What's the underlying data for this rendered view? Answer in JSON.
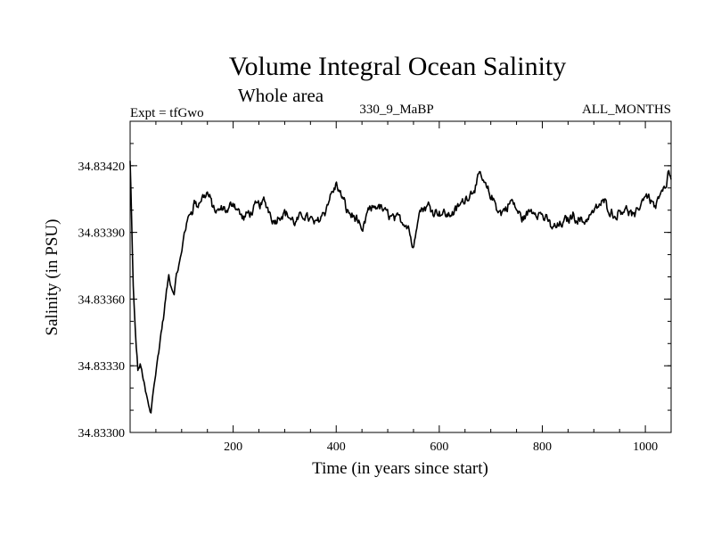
{
  "chart_data": {
    "type": "line",
    "title": "Volume Integral Ocean Salinity",
    "subtitle": "Whole area",
    "annotations": {
      "left": "Expt = tfGwo",
      "center": "330_9_MaBP",
      "right": "ALL_MONTHS"
    },
    "xlabel": "Time (in years since start)",
    "ylabel": "Salinity (in PSU)",
    "xlim": [
      0,
      1050
    ],
    "ylim": [
      34.833,
      34.8344
    ],
    "x_ticks": [
      200,
      400,
      600,
      800,
      1000
    ],
    "x_tick_labels": [
      "200",
      "400",
      "600",
      "800",
      "1000"
    ],
    "y_ticks": [
      34.833,
      34.8336,
      34.8339,
      34.8342
    ],
    "y_tick_labels": [
      "34.83300",
      "34.83360",
      "34.83390",
      "34.83420"
    ],
    "y_tick_labels_extra": {
      "value": 34.8333,
      "label": "34.83330"
    },
    "grid": false,
    "series": [
      {
        "name": "salinity",
        "color": "#000000",
        "x": [
          0,
          3,
          6,
          10,
          15,
          20,
          25,
          30,
          35,
          40,
          45,
          50,
          55,
          60,
          65,
          70,
          75,
          80,
          85,
          90,
          95,
          100,
          105,
          110,
          115,
          120,
          125,
          130,
          140,
          150,
          160,
          170,
          180,
          190,
          200,
          220,
          240,
          260,
          280,
          300,
          320,
          340,
          360,
          380,
          400,
          420,
          440,
          450,
          460,
          480,
          500,
          520,
          540,
          550,
          555,
          560,
          580,
          600,
          620,
          640,
          660,
          680,
          700,
          720,
          740,
          760,
          780,
          800,
          820,
          840,
          860,
          880,
          900,
          920,
          940,
          960,
          980,
          1000,
          1020,
          1030,
          1040,
          1045,
          1050
        ],
        "values": [
          34.83422,
          34.83395,
          34.83365,
          34.83345,
          34.83328,
          34.8333,
          34.83325,
          34.83318,
          34.83313,
          34.83308,
          34.8332,
          34.83328,
          34.83336,
          34.83345,
          34.83352,
          34.83362,
          34.8337,
          34.83365,
          34.83362,
          34.8337,
          34.83375,
          34.8338,
          34.8339,
          34.83394,
          34.83398,
          34.834,
          34.83405,
          34.83402,
          34.83405,
          34.83408,
          34.83402,
          34.83398,
          34.834,
          34.83398,
          34.83404,
          34.83396,
          34.834,
          34.83404,
          34.83396,
          34.834,
          34.83394,
          34.83398,
          34.83394,
          34.83402,
          34.83412,
          34.834,
          34.83396,
          34.83388,
          34.83398,
          34.83402,
          34.83398,
          34.83396,
          34.83394,
          34.83382,
          34.83392,
          34.834,
          34.83402,
          34.834,
          34.83398,
          34.83402,
          34.83408,
          34.83415,
          34.83406,
          34.83398,
          34.83404,
          34.83396,
          34.834,
          34.83398,
          34.83392,
          34.83394,
          34.83398,
          34.83395,
          34.834,
          34.83404,
          34.83398,
          34.83402,
          34.83396,
          34.83408,
          34.83402,
          34.83408,
          34.8341,
          34.83418,
          34.83412
        ]
      }
    ]
  }
}
